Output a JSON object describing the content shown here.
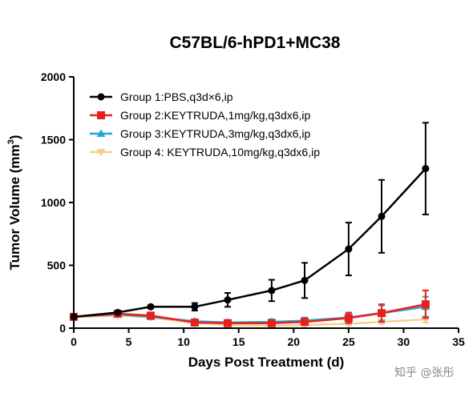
{
  "watermark": "知乎 @张彤",
  "chart_data": {
    "type": "line",
    "title": "C57BL/6-hPD1+MC38",
    "xlabel": "Days Post Treatment (d)",
    "ylabel_main": "Tumor Volume (mm",
    "ylabel_sup": "3",
    "ylabel_close": ")",
    "xlim": [
      0,
      35
    ],
    "ylim": [
      0,
      2000
    ],
    "x_ticks": [
      "0",
      "5",
      "10",
      "15",
      "20",
      "25",
      "30",
      "35"
    ],
    "y_ticks": [
      "0",
      "500",
      "1000",
      "1500",
      "2000"
    ],
    "legend_position": "top-left",
    "grid": false,
    "series": [
      {
        "name": "Group 1:PBS,q3d×6,ip",
        "color": "#000000",
        "marker": "circle",
        "x": [
          0,
          4,
          7,
          11,
          14,
          18,
          21,
          25,
          28,
          32
        ],
        "y": [
          90,
          125,
          170,
          170,
          225,
          300,
          380,
          630,
          890,
          1270
        ],
        "err": [
          8,
          10,
          12,
          30,
          55,
          85,
          140,
          210,
          290,
          365
        ]
      },
      {
        "name": "Group 2:KEYTRUDA,1mg/kg,q3dx6,ip",
        "color": "#e8201c",
        "marker": "square",
        "x": [
          0,
          4,
          7,
          11,
          14,
          18,
          21,
          25,
          28,
          32
        ],
        "y": [
          90,
          115,
          100,
          45,
          40,
          40,
          50,
          80,
          120,
          190
        ],
        "err": [
          8,
          10,
          10,
          12,
          12,
          15,
          25,
          40,
          70,
          110
        ]
      },
      {
        "name": "Group 3:KEYTRUDA,3mg/kg,q3dx6,ip",
        "color": "#2aa4d6",
        "marker": "triangle",
        "x": [
          0,
          4,
          7,
          11,
          14,
          18,
          21,
          25,
          28,
          32
        ],
        "y": [
          90,
          110,
          90,
          55,
          45,
          50,
          60,
          85,
          120,
          170
        ],
        "err": [
          8,
          10,
          10,
          12,
          15,
          20,
          25,
          40,
          60,
          80
        ]
      },
      {
        "name": "Group 4: KEYTRUDA,10mg/kg,q3dx6,ip",
        "color": "#f5cf8e",
        "marker": "triangle-down",
        "x": [
          0,
          4,
          7,
          11,
          14,
          18,
          21,
          25,
          28,
          32
        ],
        "y": [
          90,
          100,
          85,
          40,
          25,
          20,
          25,
          35,
          50,
          70
        ],
        "err": [
          8,
          8,
          8,
          8,
          6,
          6,
          8,
          10,
          15,
          25
        ]
      }
    ]
  }
}
